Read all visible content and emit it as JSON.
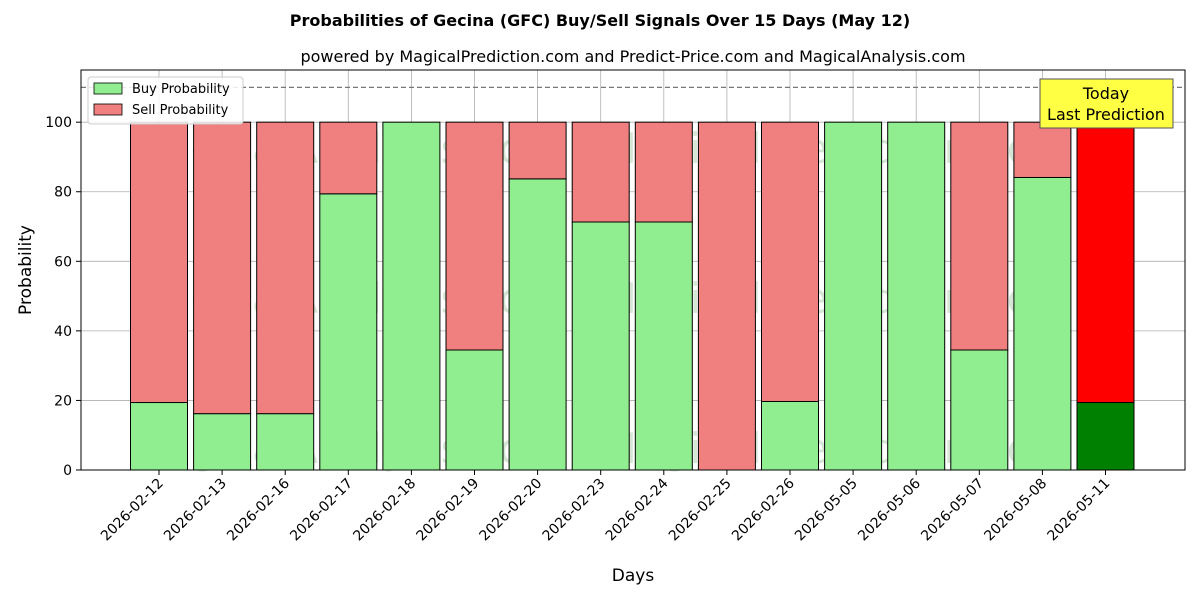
{
  "chart_data": {
    "type": "bar",
    "stacked": true,
    "title": "Probabilities of Gecina (GFC) Buy/Sell Signals Over 15 Days (May 12)",
    "subtitle": "powered by MagicalPrediction.com and Predict-Price.com and MagicalAnalysis.com",
    "xlabel": "Days",
    "ylabel": "Probability",
    "ylim": [
      0,
      115
    ],
    "yticks": [
      0,
      20,
      40,
      60,
      80,
      100
    ],
    "grid": true,
    "legend_position": "top-left",
    "reference_line": 110,
    "categories": [
      "2026-02-12",
      "2026-02-13",
      "2026-02-16",
      "2026-02-17",
      "2026-02-18",
      "2026-02-19",
      "2026-02-20",
      "2026-02-23",
      "2026-02-24",
      "2026-02-25",
      "2026-02-26",
      "2026-05-05",
      "2026-05-06",
      "2026-05-07",
      "2026-05-08",
      "2026-05-11"
    ],
    "series": [
      {
        "name": "Buy Probability",
        "color": "#90ee90",
        "values": [
          19.4,
          16.2,
          16.2,
          79.4,
          100,
          34.5,
          83.7,
          71.3,
          71.3,
          0,
          19.7,
          100,
          100,
          34.5,
          84.1,
          19.4
        ]
      },
      {
        "name": "Sell Probability",
        "color": "#f08080",
        "values": [
          80.6,
          83.8,
          83.8,
          20.6,
          0,
          65.5,
          16.3,
          28.7,
          28.7,
          100,
          80.3,
          0,
          0,
          65.5,
          15.9,
          80.6
        ]
      }
    ],
    "highlight": {
      "category": "2026-05-11",
      "buy_color": "#008000",
      "sell_color": "#ff0000",
      "annotation_lines": [
        "Today",
        "Last Prediction"
      ]
    },
    "watermarks": [
      "MagicalAnalysis.com",
      "MagicalPrediction.com"
    ]
  }
}
